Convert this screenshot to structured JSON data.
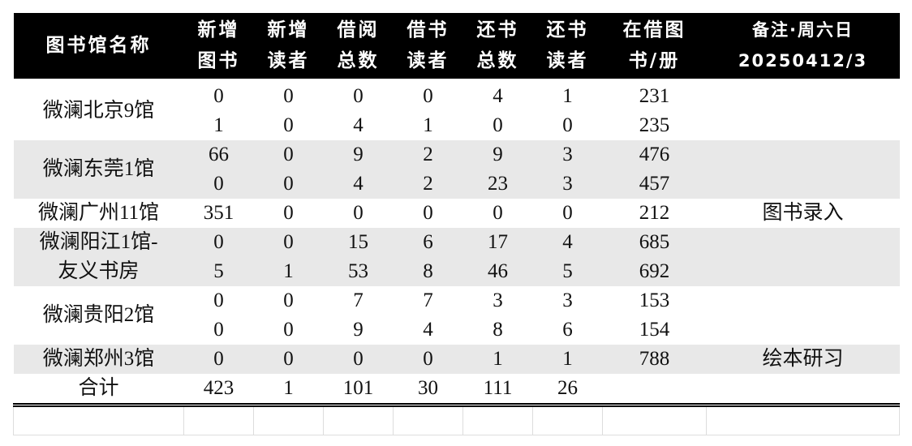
{
  "headers": [
    "图书馆名称",
    "新增\n图书",
    "新增\n读者",
    "借阅\n总数",
    "借书\n读者",
    "还书\n总数",
    "还书\n读者",
    "在借图\n书/册",
    "备注·周六日\n20250412/3"
  ],
  "libraries": [
    {
      "name": "微澜北京9馆",
      "shade": false,
      "rows": [
        [
          "0",
          "0",
          "0",
          "0",
          "4",
          "1",
          "231"
        ],
        [
          "1",
          "0",
          "4",
          "1",
          "0",
          "0",
          "235"
        ]
      ],
      "note": ""
    },
    {
      "name": "微澜东莞1馆",
      "shade": true,
      "rows": [
        [
          "66",
          "0",
          "9",
          "2",
          "9",
          "3",
          "476"
        ],
        [
          "0",
          "0",
          "4",
          "2",
          "23",
          "3",
          "457"
        ]
      ],
      "note": ""
    },
    {
      "name": "微澜广州11馆",
      "shade": false,
      "rows": [
        [
          "351",
          "0",
          "0",
          "0",
          "0",
          "0",
          "212"
        ]
      ],
      "note": "图书录入"
    },
    {
      "name": "微澜阳江1馆-\n友义书房",
      "shade": true,
      "rows": [
        [
          "0",
          "0",
          "15",
          "6",
          "17",
          "4",
          "685"
        ],
        [
          "5",
          "1",
          "53",
          "8",
          "46",
          "5",
          "692"
        ]
      ],
      "note": ""
    },
    {
      "name": "微澜贵阳2馆",
      "shade": false,
      "rows": [
        [
          "0",
          "0",
          "7",
          "7",
          "3",
          "3",
          "153"
        ],
        [
          "0",
          "0",
          "9",
          "4",
          "8",
          "6",
          "154"
        ]
      ],
      "note": ""
    },
    {
      "name": "微澜郑州3馆",
      "shade": true,
      "rows": [
        [
          "0",
          "0",
          "0",
          "0",
          "1",
          "1",
          "788"
        ]
      ],
      "note": "绘本研习"
    }
  ],
  "total": {
    "label": "合计",
    "values": [
      "423",
      "1",
      "101",
      "30",
      "111",
      "26",
      "",
      ""
    ]
  },
  "colors": {
    "header_bg": "#000000",
    "header_text": "#ffffff",
    "band": "#e8e8e8"
  }
}
